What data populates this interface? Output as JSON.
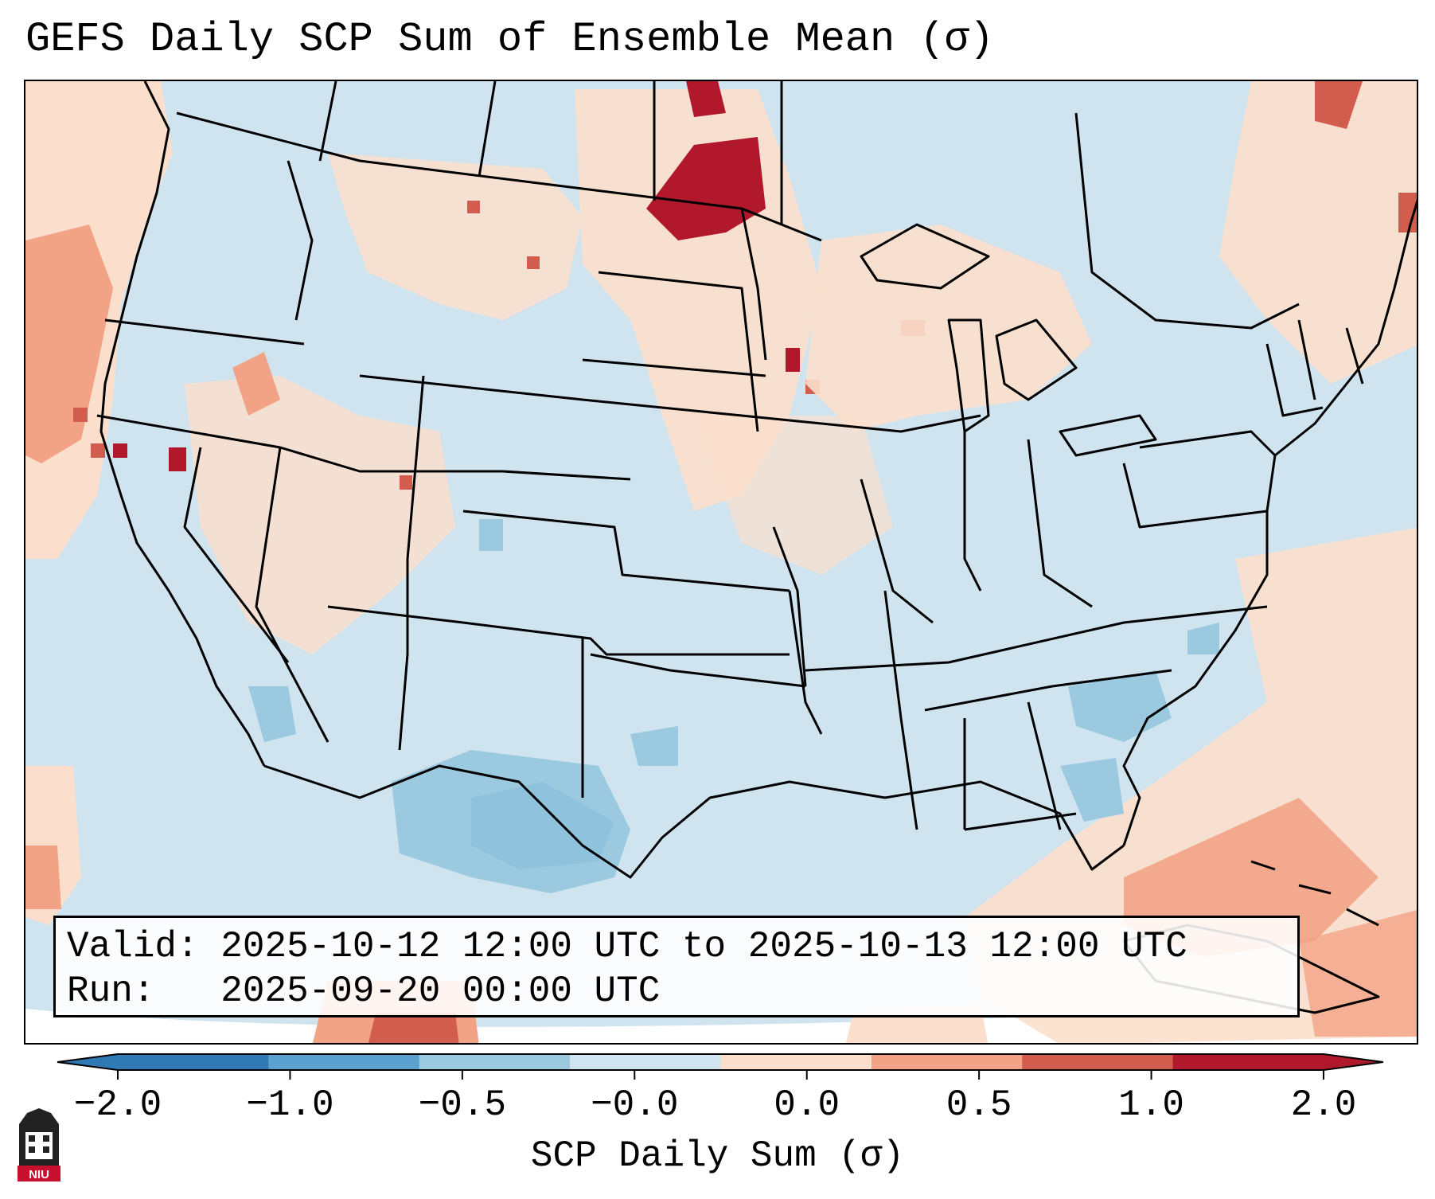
{
  "title": "GEFS Daily SCP Sum of Ensemble Mean (σ)",
  "info": {
    "valid_label": "Valid:",
    "valid_value": "2025-10-12 12:00 UTC to 2025-10-13 12:00 UTC",
    "run_label": "Run:",
    "run_value": "2025-09-20 00:00 UTC"
  },
  "colorbar": {
    "label": "SCP Daily Sum (σ)",
    "ticks": [
      "−2.0",
      "−1.0",
      "−0.5",
      "−0.0",
      "0.0",
      "0.5",
      "1.0",
      "2.0"
    ],
    "colors": [
      "#2f79b5",
      "#5aa1cf",
      "#9bc9e0",
      "#d0e4f0",
      "#fbdfcc",
      "#f2a385",
      "#d25d4e",
      "#b2182b"
    ]
  },
  "map": {
    "background_color": "#d0e4f0",
    "outside_color": "#ffffff"
  },
  "logo": {
    "text": "NIU"
  }
}
